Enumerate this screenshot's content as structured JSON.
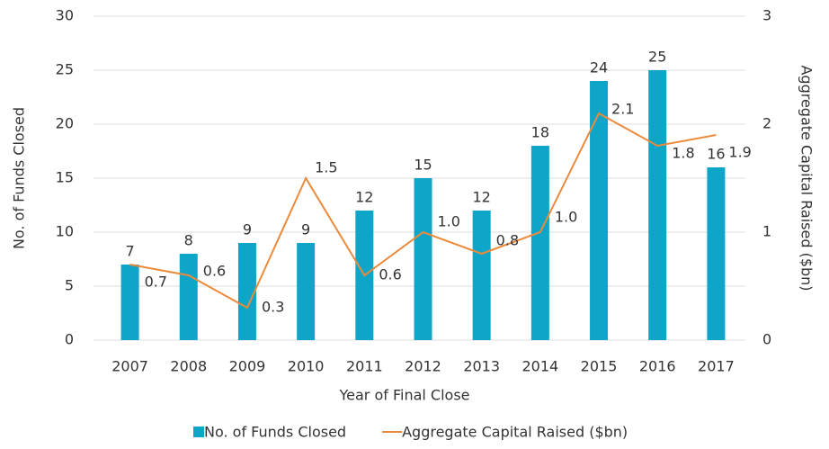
{
  "chart_data": {
    "type": "bar_line",
    "categories": [
      "2007",
      "2008",
      "2009",
      "2010",
      "2011",
      "2012",
      "2013",
      "2014",
      "2015",
      "2016",
      "2017"
    ],
    "series": [
      {
        "name": "No. of Funds Closed",
        "color": "#0ea5c8",
        "type": "bar",
        "values": [
          7,
          8,
          9,
          9,
          12,
          15,
          12,
          18,
          24,
          25,
          16
        ]
      },
      {
        "name": "Aggregate Capital Raised ($bn)",
        "color": "#ec8a3c",
        "type": "line",
        "axis": "y2",
        "values": [
          0.7,
          0.6,
          0.3,
          1.5,
          0.6,
          1.0,
          0.8,
          1.0,
          2.1,
          1.8,
          1.9
        ],
        "value_labels": [
          "0.7",
          "0.6",
          "0.3",
          "1.5",
          "0.6",
          "1.0",
          "0.8",
          "1.0",
          "2.1",
          "1.8",
          "1.9"
        ]
      }
    ],
    "xlabel": "Year of Final Close",
    "ylabel": "No. of Funds Closed",
    "y2label": "Aggregate Capital Raised ($bn)",
    "ylim": [
      0,
      30
    ],
    "yticks": [
      0,
      5,
      10,
      15,
      20,
      25,
      30
    ],
    "y2lim": [
      0,
      3
    ],
    "y2ticks": [
      0,
      1,
      2,
      3
    ],
    "grid": true,
    "legend": "bottom"
  }
}
